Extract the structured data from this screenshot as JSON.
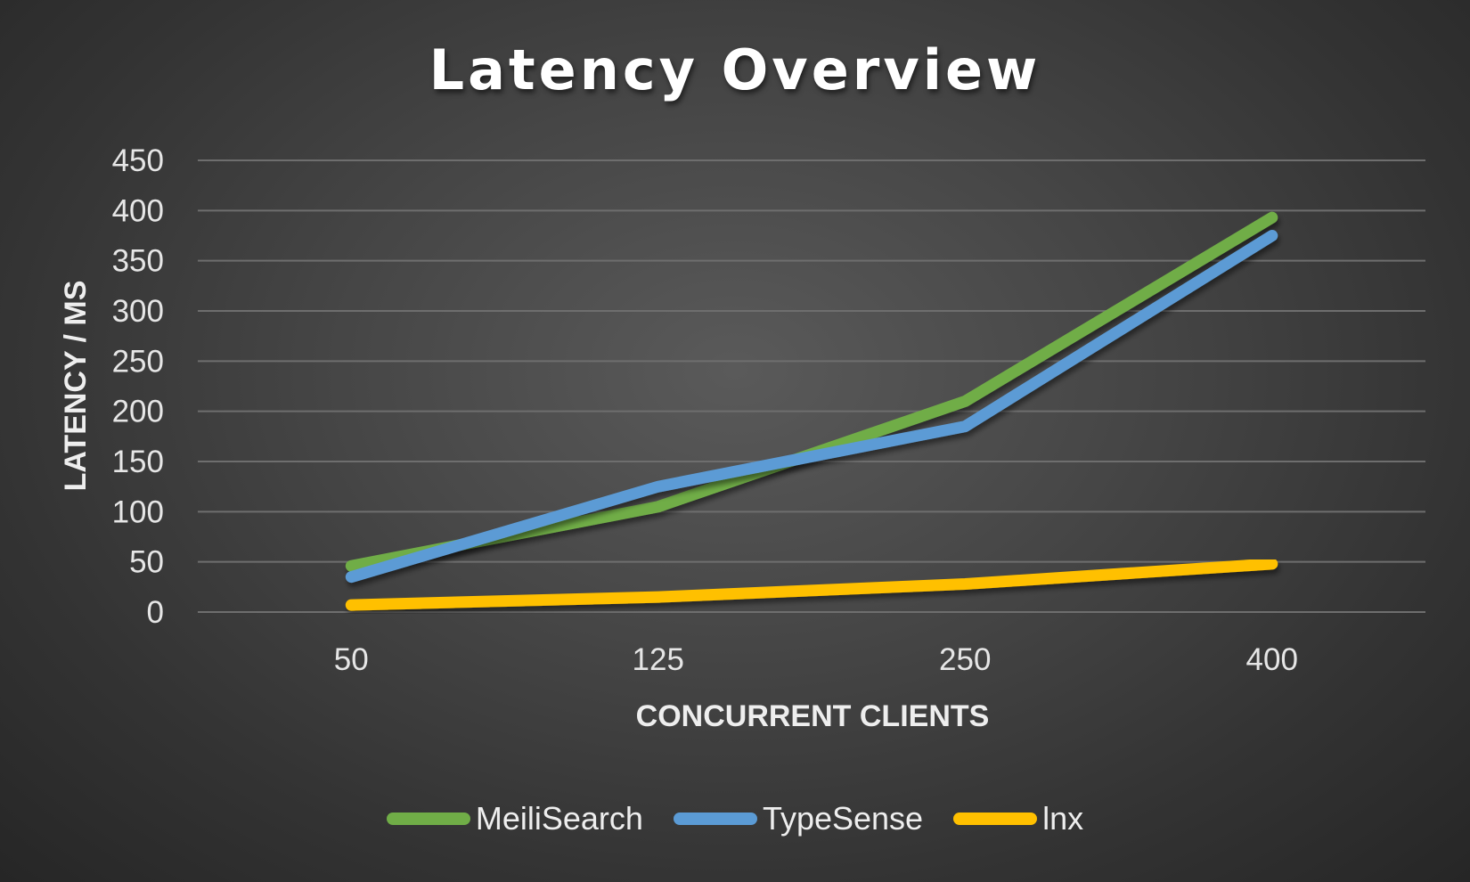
{
  "chart_data": {
    "type": "line",
    "title": "Latency Overview",
    "xlabel": "CONCURRENT CLIENTS",
    "ylabel": "LATENCY / MS",
    "categories": [
      "50",
      "125",
      "250",
      "400"
    ],
    "y_ticks": [
      "0",
      "50",
      "100",
      "150",
      "200",
      "250",
      "300",
      "350",
      "400",
      "450"
    ],
    "ylim": [
      0,
      450
    ],
    "grid": true,
    "legend_position": "bottom",
    "series": [
      {
        "name": "MeiliSearch",
        "color": "#70ad47",
        "values": [
          46,
          105,
          210,
          393
        ]
      },
      {
        "name": "TypeSense",
        "color": "#5b9bd5",
        "values": [
          35,
          125,
          185,
          375
        ]
      },
      {
        "name": "lnx",
        "color": "#ffc000",
        "values": [
          7,
          15,
          28,
          48
        ]
      }
    ]
  }
}
